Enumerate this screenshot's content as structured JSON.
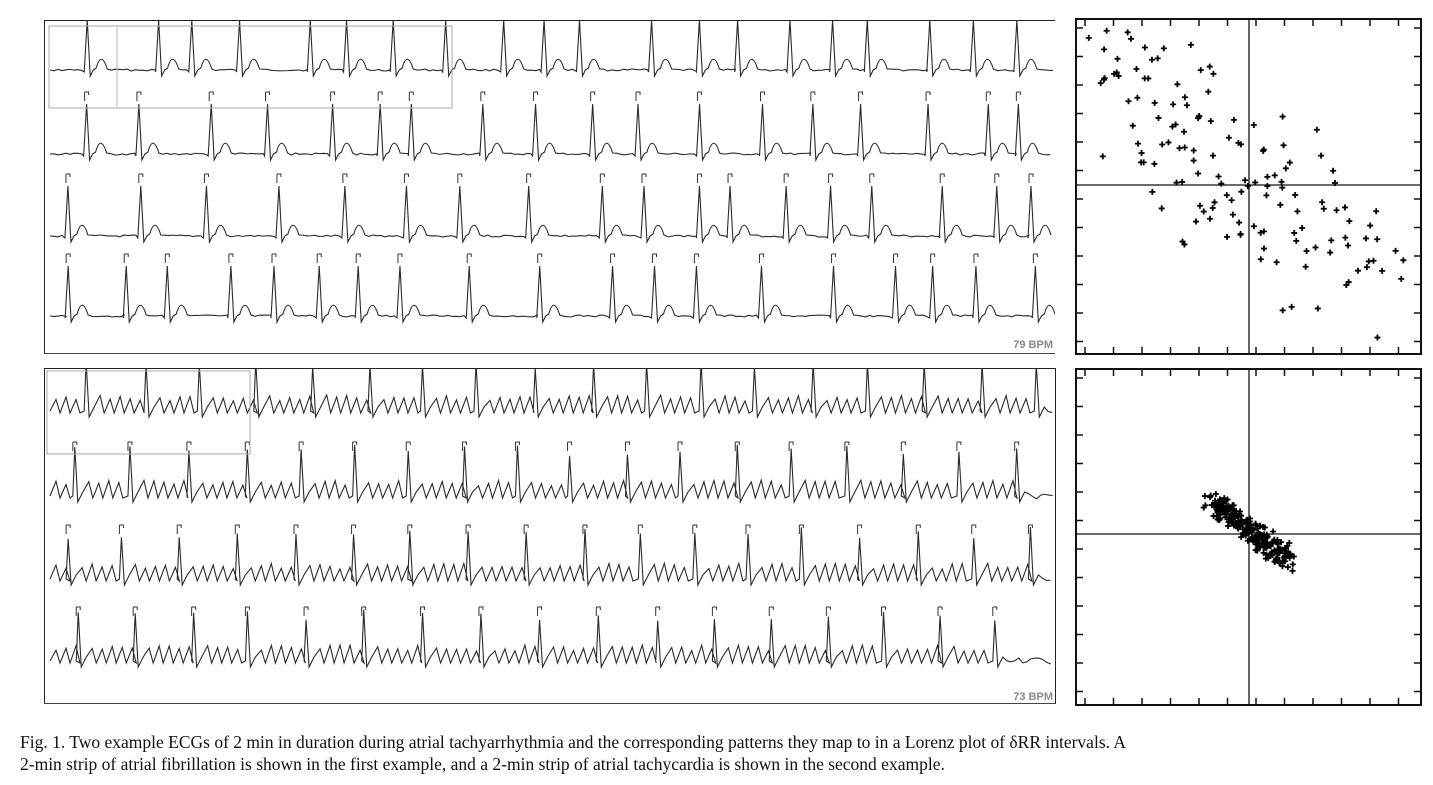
{
  "figure": {
    "example1": {
      "rhythm": "atrial fibrillation",
      "bpm_label": "79 BPM",
      "strips": 4,
      "lorenz_pattern": "scattered"
    },
    "example2": {
      "rhythm": "atrial tachycardia",
      "bpm_label": "73 BPM",
      "strips": 4,
      "lorenz_pattern": "compact diagonal cluster"
    },
    "caption": {
      "line1": "Fig. 1.   Two example ECGs of 2 min in duration during atrial tachyarrhythmia and the corresponding patterns they map to in a Lorenz plot of δRR intervals. A",
      "line2": "2-min strip of atrial fibrillation is shown in the first example, and a 2-min strip of atrial tachycardia is shown in the second example."
    }
  }
}
